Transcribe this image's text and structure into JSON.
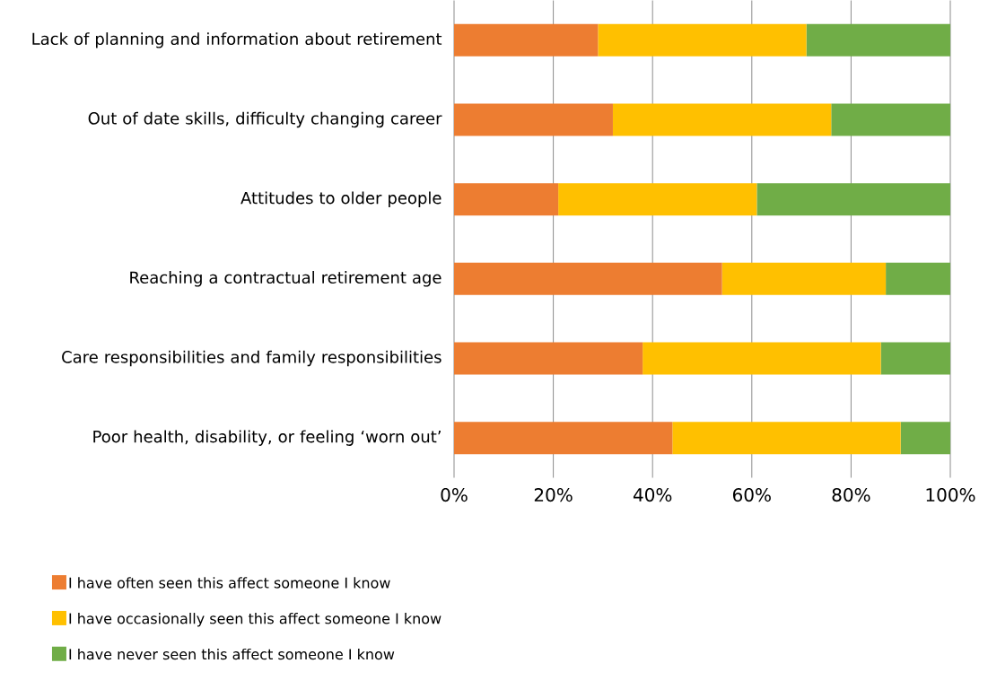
{
  "chart_data": {
    "type": "bar",
    "orientation": "horizontal",
    "stacked": true,
    "categories": [
      "Lack of planning and information about retirement",
      "Out of date skills, difficulty changing career",
      "Attitudes to older people",
      "Reaching a contractual retirement age",
      "Care responsibilities and family responsibilities",
      "Poor health, disability, or feeling ‘worn out’"
    ],
    "series": [
      {
        "name": "I have often seen this affect someone I know",
        "color": "#ed7d31",
        "values": [
          29,
          32,
          21,
          54,
          38,
          44
        ]
      },
      {
        "name": "I have occasionally seen this affect someone I know",
        "color": "#ffc000",
        "values": [
          42,
          44,
          40,
          33,
          48,
          46
        ]
      },
      {
        "name": "I have never seen this affect someone I know",
        "color": "#70ad47",
        "values": [
          29,
          24,
          39,
          13,
          14,
          10
        ]
      }
    ],
    "xlim": [
      0,
      100
    ],
    "xticks": [
      {
        "value": 0,
        "label": "0%"
      },
      {
        "value": 20,
        "label": "20%"
      },
      {
        "value": 40,
        "label": "40%"
      },
      {
        "value": 60,
        "label": "60%"
      },
      {
        "value": 80,
        "label": "80%"
      },
      {
        "value": 100,
        "label": "100%"
      }
    ],
    "grid": "x",
    "legend": "bottom"
  }
}
